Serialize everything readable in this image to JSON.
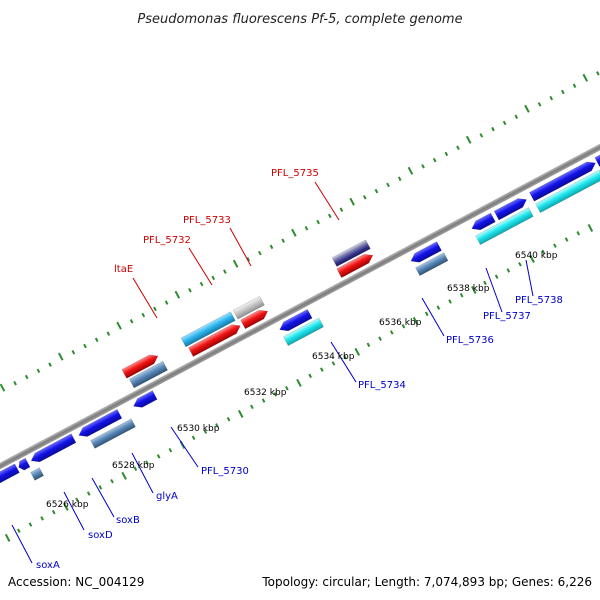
{
  "title": "Pseudomonas fluorescens Pf-5, complete genome",
  "footer": {
    "accession": "Accession: NC_004129",
    "summary": "Topology: circular; Length: 7,074,893 bp; Genes: 6,226"
  },
  "colors": {
    "backbone": "#8c8c8c",
    "tick": "#2e8b2e",
    "label_forward": "#cc0000",
    "label_reverse": "#0000cc",
    "leader": "#5a5aff",
    "gene_blue": "#1010e0",
    "gene_steel": "#4f7fb0",
    "gene_cyan": "#22e0e8",
    "gene_red": "#ee1010",
    "gene_sky": "#30b8ee",
    "gene_grey": "#c4c4c4",
    "gene_navy": "#3a3a8a"
  },
  "tick_labels": [
    "6526 kbp",
    "6528 kbp",
    "6530 kbp",
    "6532 kbp",
    "6534 kbp",
    "6536 kbp",
    "6538 kbp",
    "6540 kbp"
  ],
  "gene_labels_forward": [
    "ltaE",
    "PFL_5732",
    "PFL_5733",
    "PFL_5735"
  ],
  "gene_labels_reverse": [
    "soxA",
    "soxD",
    "soxB",
    "glyA",
    "PFL_5730",
    "PFL_5734",
    "PFL_5736",
    "PFL_5737",
    "PFL_5738"
  ]
}
